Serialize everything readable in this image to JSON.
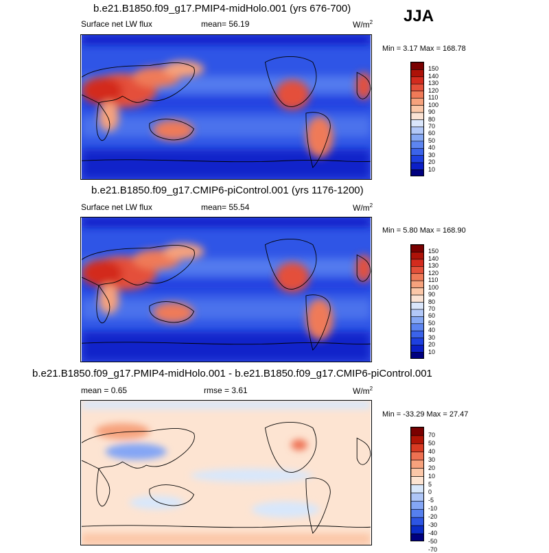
{
  "season": "JJA",
  "colors": {
    "abs_palette": [
      "#00007f",
      "#0b1fc7",
      "#1e40e0",
      "#3b63ea",
      "#5d85f0",
      "#86a8f4",
      "#b2c8f8",
      "#dae6fb",
      "#fbe3d4",
      "#fbc7a8",
      "#f6a27d",
      "#ef7a58",
      "#e4503a",
      "#d32b1e",
      "#ad1208",
      "#7a0000"
    ],
    "diff_palette": [
      "#00007f",
      "#0b2cc7",
      "#2d55e3",
      "#5680ee",
      "#84a6f5",
      "#aec6f8",
      "#d8e7fb",
      "#fde4d2",
      "#fbc7a8",
      "#f6a27d",
      "#ee7152",
      "#d93b23",
      "#b01406",
      "#7a0000"
    ]
  },
  "chart_data": [
    {
      "type": "heatmap",
      "title": "b.e21.B1850.f09_g17.PMIP4-midHolo.001 (yrs 676-700)",
      "left_label": "Surface net LW flux",
      "mean_label": "mean=  56.19",
      "units": "W/m",
      "units_sup": "2",
      "minmax": "Min =   3.17 Max = 168.78",
      "colorbar_levels": [
        "150",
        "140",
        "130",
        "120",
        "110",
        "100",
        "90",
        "80",
        "70",
        "60",
        "50",
        "40",
        "30",
        "20",
        "10"
      ]
    },
    {
      "type": "heatmap",
      "title": "b.e21.B1850.f09_g17.CMIP6-piControl.001 (yrs 1176-1200)",
      "left_label": "Surface net LW flux",
      "mean_label": "mean=  55.54",
      "units": "W/m",
      "units_sup": "2",
      "minmax": "Min =   5.80 Max = 168.90",
      "colorbar_levels": [
        "150",
        "140",
        "130",
        "120",
        "110",
        "100",
        "90",
        "80",
        "70",
        "60",
        "50",
        "40",
        "30",
        "20",
        "10"
      ]
    },
    {
      "type": "heatmap",
      "title": "b.e21.B1850.f09_g17.PMIP4-midHolo.001 - b.e21.B1850.f09_g17.CMIP6-piControl.001",
      "left_label": "mean =   0.65",
      "mean_label": "rmse =   3.61",
      "units": "W/m",
      "units_sup": "2",
      "minmax": "Min = -33.29 Max =  27.47",
      "colorbar_levels": [
        "70",
        "50",
        "40",
        "30",
        "20",
        "10",
        "5",
        "0",
        "-5",
        "-10",
        "-20",
        "-30",
        "-40",
        "-50",
        "-70"
      ]
    }
  ]
}
